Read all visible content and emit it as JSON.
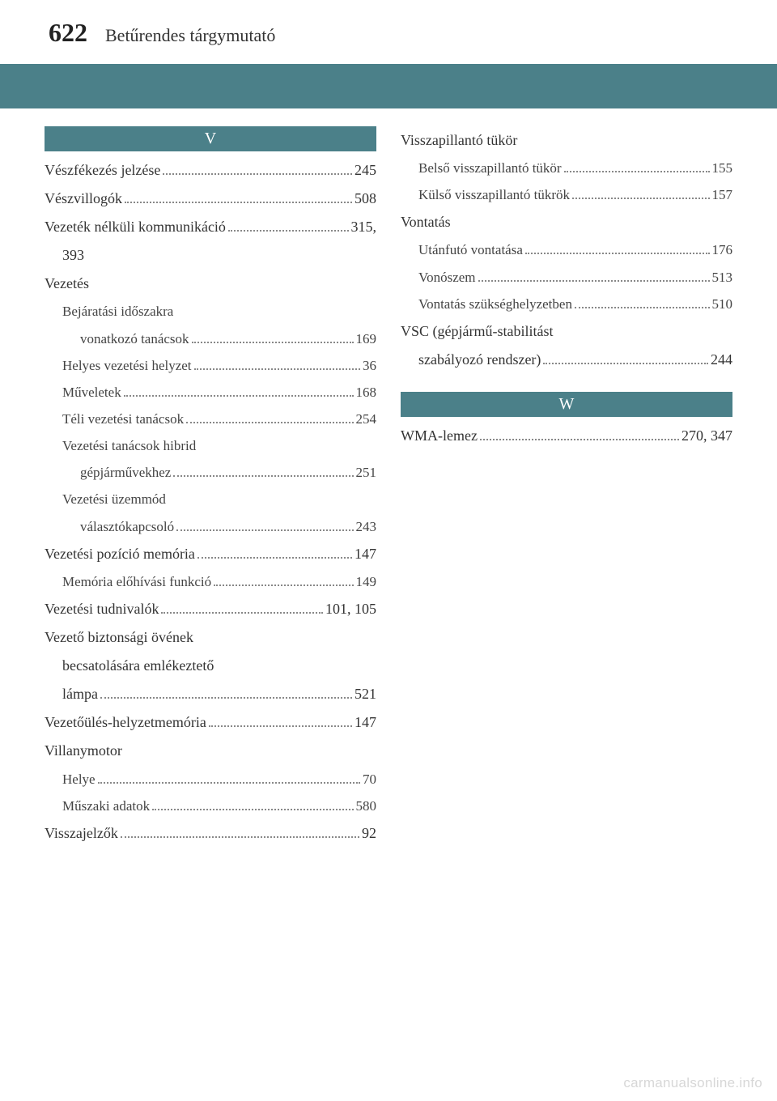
{
  "header": {
    "page_number": "622",
    "title": "Betűrendes tárgymutató"
  },
  "colors": {
    "accent": "#4b8089",
    "text": "#333333",
    "watermark": "#d7d7d7",
    "background": "#ffffff"
  },
  "left_column": {
    "letter": "V",
    "entries": [
      {
        "type": "leaf",
        "indent": 0,
        "label": "Vészfékezés jelzése",
        "page": "245"
      },
      {
        "type": "leaf",
        "indent": 0,
        "label": "Vészvillogók",
        "page": "508"
      },
      {
        "type": "leaf",
        "indent": 0,
        "label": "Vezeték nélküli kommunikáció",
        "page": "315,"
      },
      {
        "type": "heading",
        "indent": 1,
        "label": "393"
      },
      {
        "type": "heading",
        "indent": 0,
        "label": "Vezetés"
      },
      {
        "type": "heading",
        "indent": 1,
        "label": "Bejáratási időszakra",
        "sub": true
      },
      {
        "type": "leaf",
        "indent": 2,
        "label": "vonatkozó tanácsok",
        "page": "169",
        "sub": true
      },
      {
        "type": "leaf",
        "indent": 1,
        "label": "Helyes vezetési helyzet",
        "page": "36",
        "sub": true
      },
      {
        "type": "leaf",
        "indent": 1,
        "label": "Műveletek",
        "page": "168",
        "sub": true
      },
      {
        "type": "leaf",
        "indent": 1,
        "label": "Téli vezetési tanácsok",
        "page": "254",
        "sub": true
      },
      {
        "type": "heading",
        "indent": 1,
        "label": "Vezetési tanácsok hibrid",
        "sub": true
      },
      {
        "type": "leaf",
        "indent": 2,
        "label": "gépjárművekhez",
        "page": "251",
        "sub": true
      },
      {
        "type": "heading",
        "indent": 1,
        "label": "Vezetési üzemmód",
        "sub": true
      },
      {
        "type": "leaf",
        "indent": 2,
        "label": "választókapcsoló",
        "page": "243",
        "sub": true
      },
      {
        "type": "leaf",
        "indent": 0,
        "label": "Vezetési pozíció memória",
        "page": "147"
      },
      {
        "type": "leaf",
        "indent": 1,
        "label": "Memória előhívási funkció",
        "page": "149",
        "sub": true
      },
      {
        "type": "leaf",
        "indent": 0,
        "label": "Vezetési tudnivalók",
        "page": "101, 105"
      },
      {
        "type": "heading",
        "indent": 0,
        "label": "Vezető biztonsági övének"
      },
      {
        "type": "heading",
        "indent": 1,
        "label": "becsatolására emlékeztető"
      },
      {
        "type": "leaf",
        "indent": 1,
        "label": "lámpa",
        "page": "521"
      },
      {
        "type": "leaf",
        "indent": 0,
        "label": "Vezetőülés-helyzetmemória",
        "page": "147"
      },
      {
        "type": "heading",
        "indent": 0,
        "label": "Villanymotor"
      },
      {
        "type": "leaf",
        "indent": 1,
        "label": "Helye",
        "page": "70",
        "sub": true
      },
      {
        "type": "leaf",
        "indent": 1,
        "label": "Műszaki adatok",
        "page": "580",
        "sub": true
      },
      {
        "type": "leaf",
        "indent": 0,
        "label": "Visszajelzők",
        "page": "92"
      }
    ]
  },
  "right_column": {
    "top_entries": [
      {
        "type": "heading",
        "indent": 0,
        "label": "Visszapillantó tükör"
      },
      {
        "type": "leaf",
        "indent": 1,
        "label": "Belső visszapillantó tükör",
        "page": "155",
        "sub": true
      },
      {
        "type": "leaf",
        "indent": 1,
        "label": "Külső visszapillantó tükrök",
        "page": "157",
        "sub": true
      },
      {
        "type": "heading",
        "indent": 0,
        "label": "Vontatás"
      },
      {
        "type": "leaf",
        "indent": 1,
        "label": "Utánfutó vontatása",
        "page": "176",
        "sub": true
      },
      {
        "type": "leaf",
        "indent": 1,
        "label": "Vonószem",
        "page": "513",
        "sub": true
      },
      {
        "type": "leaf",
        "indent": 1,
        "label": "Vontatás szükséghelyzetben",
        "page": "510",
        "sub": true
      },
      {
        "type": "heading",
        "indent": 0,
        "label": "VSC (gépjármű-stabilitást"
      },
      {
        "type": "leaf",
        "indent": 1,
        "label": "szabályozó rendszer)",
        "page": "244"
      }
    ],
    "letter": "W",
    "entries": [
      {
        "type": "leaf",
        "indent": 0,
        "label": "WMA-lemez",
        "page": "270, 347"
      }
    ]
  },
  "watermark": "carmanualsonline.info"
}
